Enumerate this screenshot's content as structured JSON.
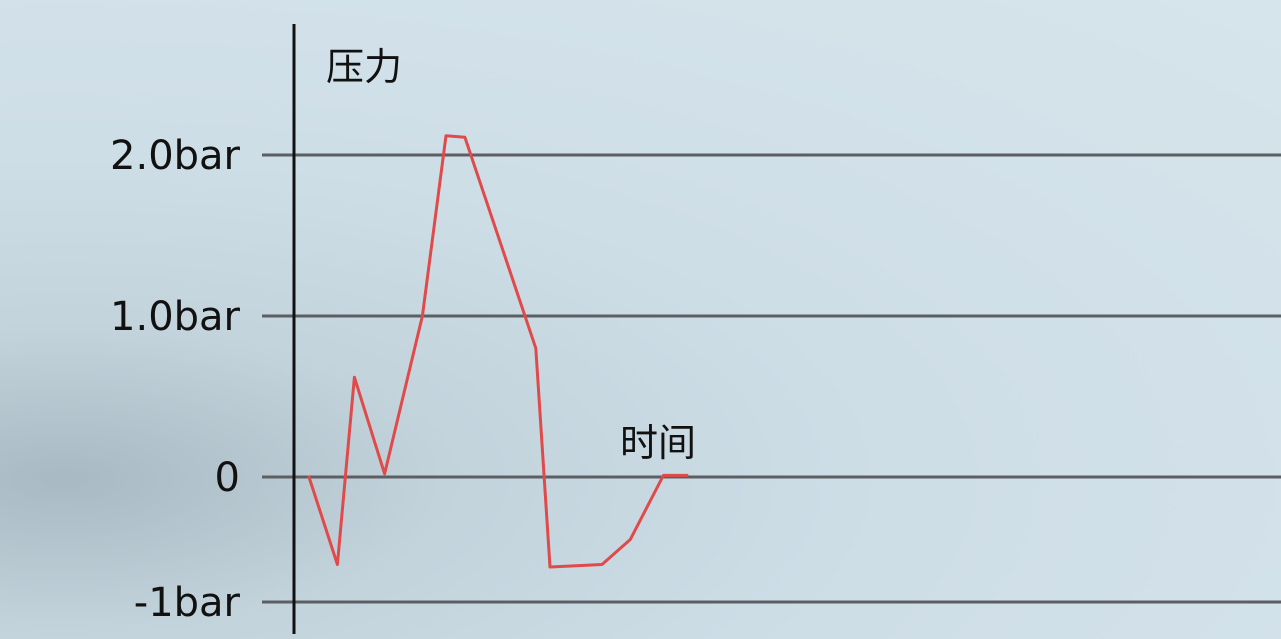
{
  "chart_data": {
    "type": "line",
    "ylabel": "压力",
    "xlabel": "时间",
    "y_tick_labels": [
      {
        "value": 2.0,
        "label": "2.0bar"
      },
      {
        "value": 1.0,
        "label": "1.0bar"
      },
      {
        "value": 0,
        "label": "0"
      },
      {
        "value": -1,
        "label": "-1bar"
      }
    ],
    "ylim": [
      -1.2,
      2.8
    ],
    "grid": true,
    "series": [
      {
        "color": "#e04a4a",
        "x": [
          0,
          0.3,
          0.48,
          0.8,
          1.2,
          1.45,
          1.65,
          2.4,
          2.55,
          3.1,
          3.4,
          3.75,
          4.0
        ],
        "values": [
          0,
          -0.7,
          0.62,
          0.02,
          1.0,
          2.12,
          2.11,
          0.8,
          -0.72,
          -0.7,
          -0.5,
          0.01,
          0.01
        ]
      }
    ]
  }
}
